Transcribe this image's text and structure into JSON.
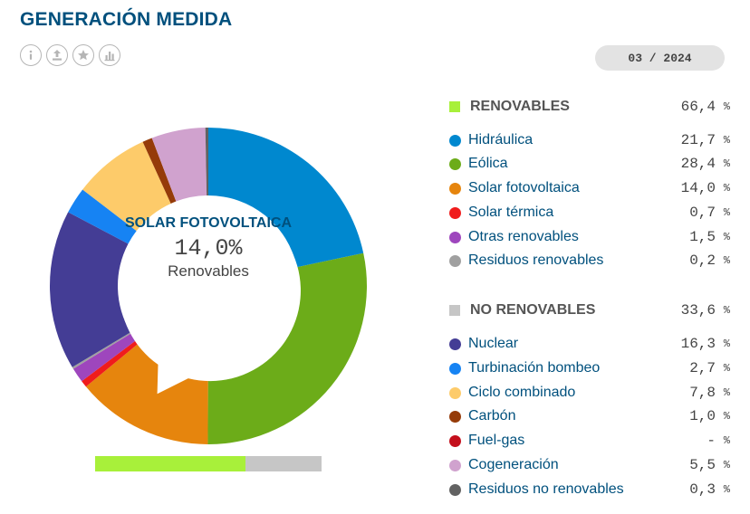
{
  "title": "GENERACIÓN MEDIDA",
  "toolbar": [
    "info-icon",
    "download-icon",
    "favorite-star-icon",
    "chart-icon"
  ],
  "date": "03 / 2024",
  "highlight": {
    "label": "SOLAR FOTOVOLTAICA",
    "value": "14,0",
    "unit": "%",
    "group": "Renovables"
  },
  "share_bar": {
    "renewable": 66.4,
    "non_renewable": 33.6,
    "colors": [
      "#a8f03a",
      "#c6c6c6"
    ]
  },
  "chart_data": {
    "type": "pie",
    "groups": [
      {
        "name": "RENOVABLES",
        "value": "66,4",
        "unit": "%",
        "color": "#a8f03a",
        "items": [
          {
            "name": "Hidráulica",
            "value": "21,7",
            "unit": "%",
            "num": 21.7,
            "color": "#0088cf"
          },
          {
            "name": "Eólica",
            "value": "28,4",
            "unit": "%",
            "num": 28.4,
            "color": "#6cac19"
          },
          {
            "name": "Solar fotovoltaica",
            "value": "14,0",
            "unit": "%",
            "num": 14.0,
            "color": "#e6850d"
          },
          {
            "name": "Solar térmica",
            "value": "0,7",
            "unit": "%",
            "num": 0.7,
            "color": "#f01c1c"
          },
          {
            "name": "Otras renovables",
            "value": "1,5",
            "unit": "%",
            "num": 1.5,
            "color": "#9e46bd"
          },
          {
            "name": "Residuos renovables",
            "value": "0,2",
            "unit": "%",
            "num": 0.2,
            "color": "#a0a0a0"
          }
        ]
      },
      {
        "name": "NO RENOVABLES",
        "value": "33,6",
        "unit": "%",
        "color": "#c6c6c6",
        "items": [
          {
            "name": "Nuclear",
            "value": "16,3",
            "unit": "%",
            "num": 16.3,
            "color": "#443d95"
          },
          {
            "name": "Turbinación bombeo",
            "value": "2,7",
            "unit": "%",
            "num": 2.7,
            "color": "#1683f3"
          },
          {
            "name": "Ciclo combinado",
            "value": "7,8",
            "unit": "%",
            "num": 7.8,
            "color": "#fdcb6a"
          },
          {
            "name": "Carbón",
            "value": "1,0",
            "unit": "%",
            "num": 1.0,
            "color": "#953b09"
          },
          {
            "name": "Fuel-gas",
            "value": "-",
            "unit": "%",
            "num": 0,
            "color": "#c40f1c"
          },
          {
            "name": "Cogeneración",
            "value": "5,5",
            "unit": "%",
            "num": 5.5,
            "color": "#d0a2ce"
          },
          {
            "name": "Residuos no renovables",
            "value": "0,3",
            "unit": "%",
            "num": 0.3,
            "color": "#626262"
          }
        ]
      }
    ]
  }
}
